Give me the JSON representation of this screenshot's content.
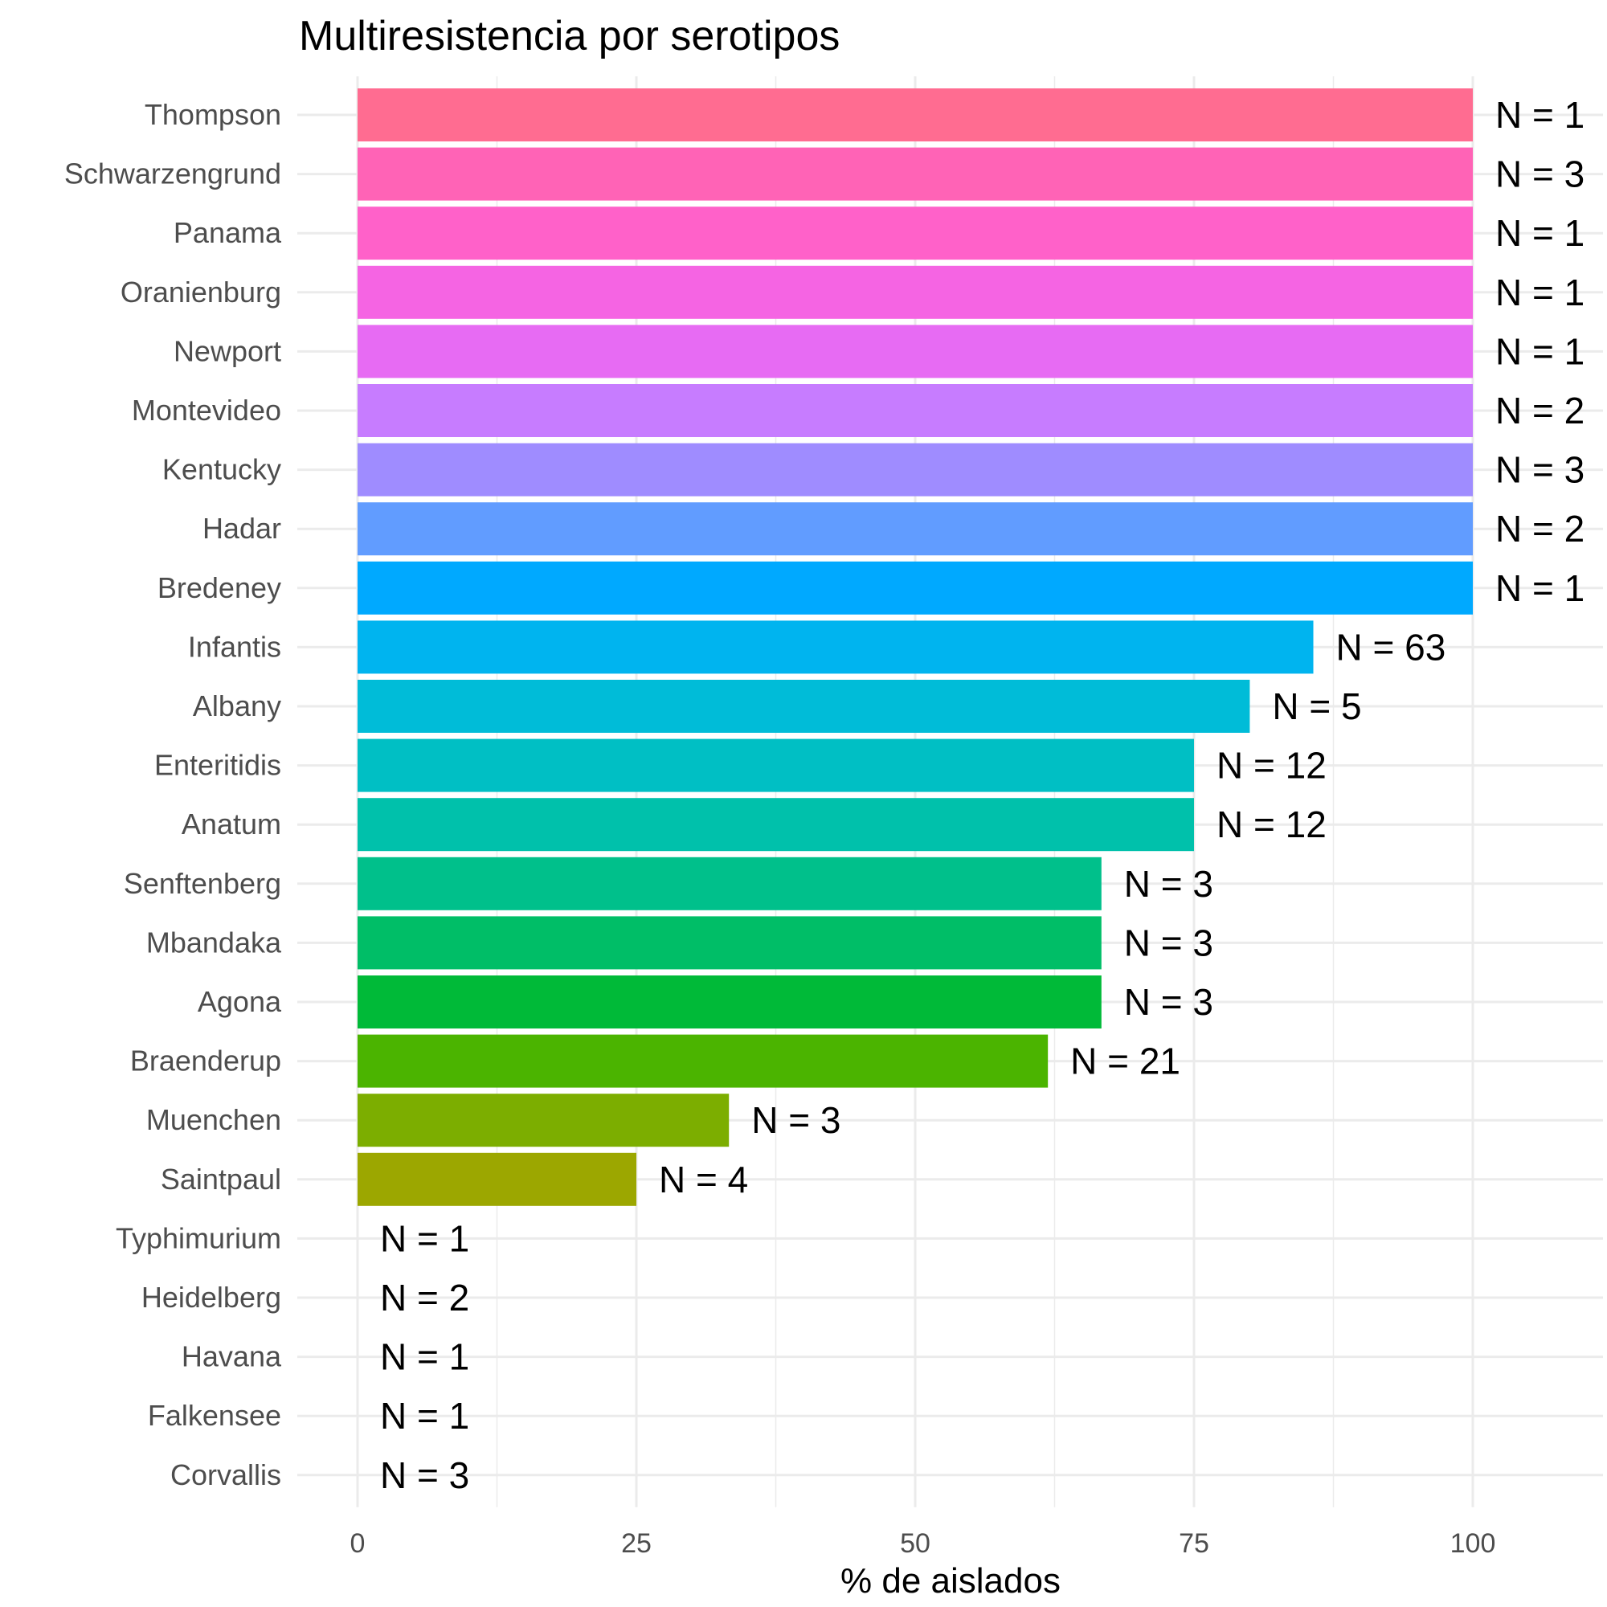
{
  "chart_data": {
    "type": "bar",
    "orientation": "horizontal",
    "title": "Multiresistencia por serotipos",
    "xlabel": "% de aislados",
    "ylabel": "",
    "xlim": [
      0,
      110
    ],
    "x_ticks": [
      0,
      25,
      50,
      75,
      100
    ],
    "x_tick_labels": [
      "0",
      "25",
      "50",
      "75",
      "100"
    ],
    "grid": true,
    "legend": "none",
    "categories": [
      "Thompson",
      "Schwarzengrund",
      "Panama",
      "Oranienburg",
      "Newport",
      "Montevideo",
      "Kentucky",
      "Hadar",
      "Bredeney",
      "Infantis",
      "Albany",
      "Enteritidis",
      "Anatum",
      "Senftenberg",
      "Mbandaka",
      "Agona",
      "Braenderup",
      "Muenchen",
      "Saintpaul",
      "Typhimurium",
      "Heidelberg",
      "Havana",
      "Falkensee",
      "Corvallis"
    ],
    "values": [
      100,
      100,
      100,
      100,
      100,
      100,
      100,
      100,
      100,
      85.7,
      80,
      75,
      75,
      66.7,
      66.7,
      66.7,
      61.9,
      33.3,
      25,
      0,
      0,
      0,
      0,
      0
    ],
    "data_labels": [
      "N = 1",
      "N = 3",
      "N = 1",
      "N = 1",
      "N = 1",
      "N = 2",
      "N = 3",
      "N = 2",
      "N = 1",
      "N = 63",
      "N = 5",
      "N = 12",
      "N = 12",
      "N = 3",
      "N = 3",
      "N = 3",
      "N = 21",
      "N = 3",
      "N = 4",
      "N = 1",
      "N = 2",
      "N = 1",
      "N = 1",
      "N = 3"
    ],
    "colors": [
      "#FF6C91",
      "#FF63B6",
      "#FF61C9",
      "#F564E3",
      "#E76BF3",
      "#C77CFF",
      "#9F8CFF",
      "#619CFF",
      "#00A9FF",
      "#00B4EF",
      "#00BCD8",
      "#00BFC4",
      "#00C1AB",
      "#00C08B",
      "#00BE67",
      "#00BA38",
      "#4BB400",
      "#7CAE00",
      "#9CA700",
      "#B79F00",
      "#CD9600",
      "#DE8C00",
      "#EA8331",
      "#F8766D"
    ]
  }
}
